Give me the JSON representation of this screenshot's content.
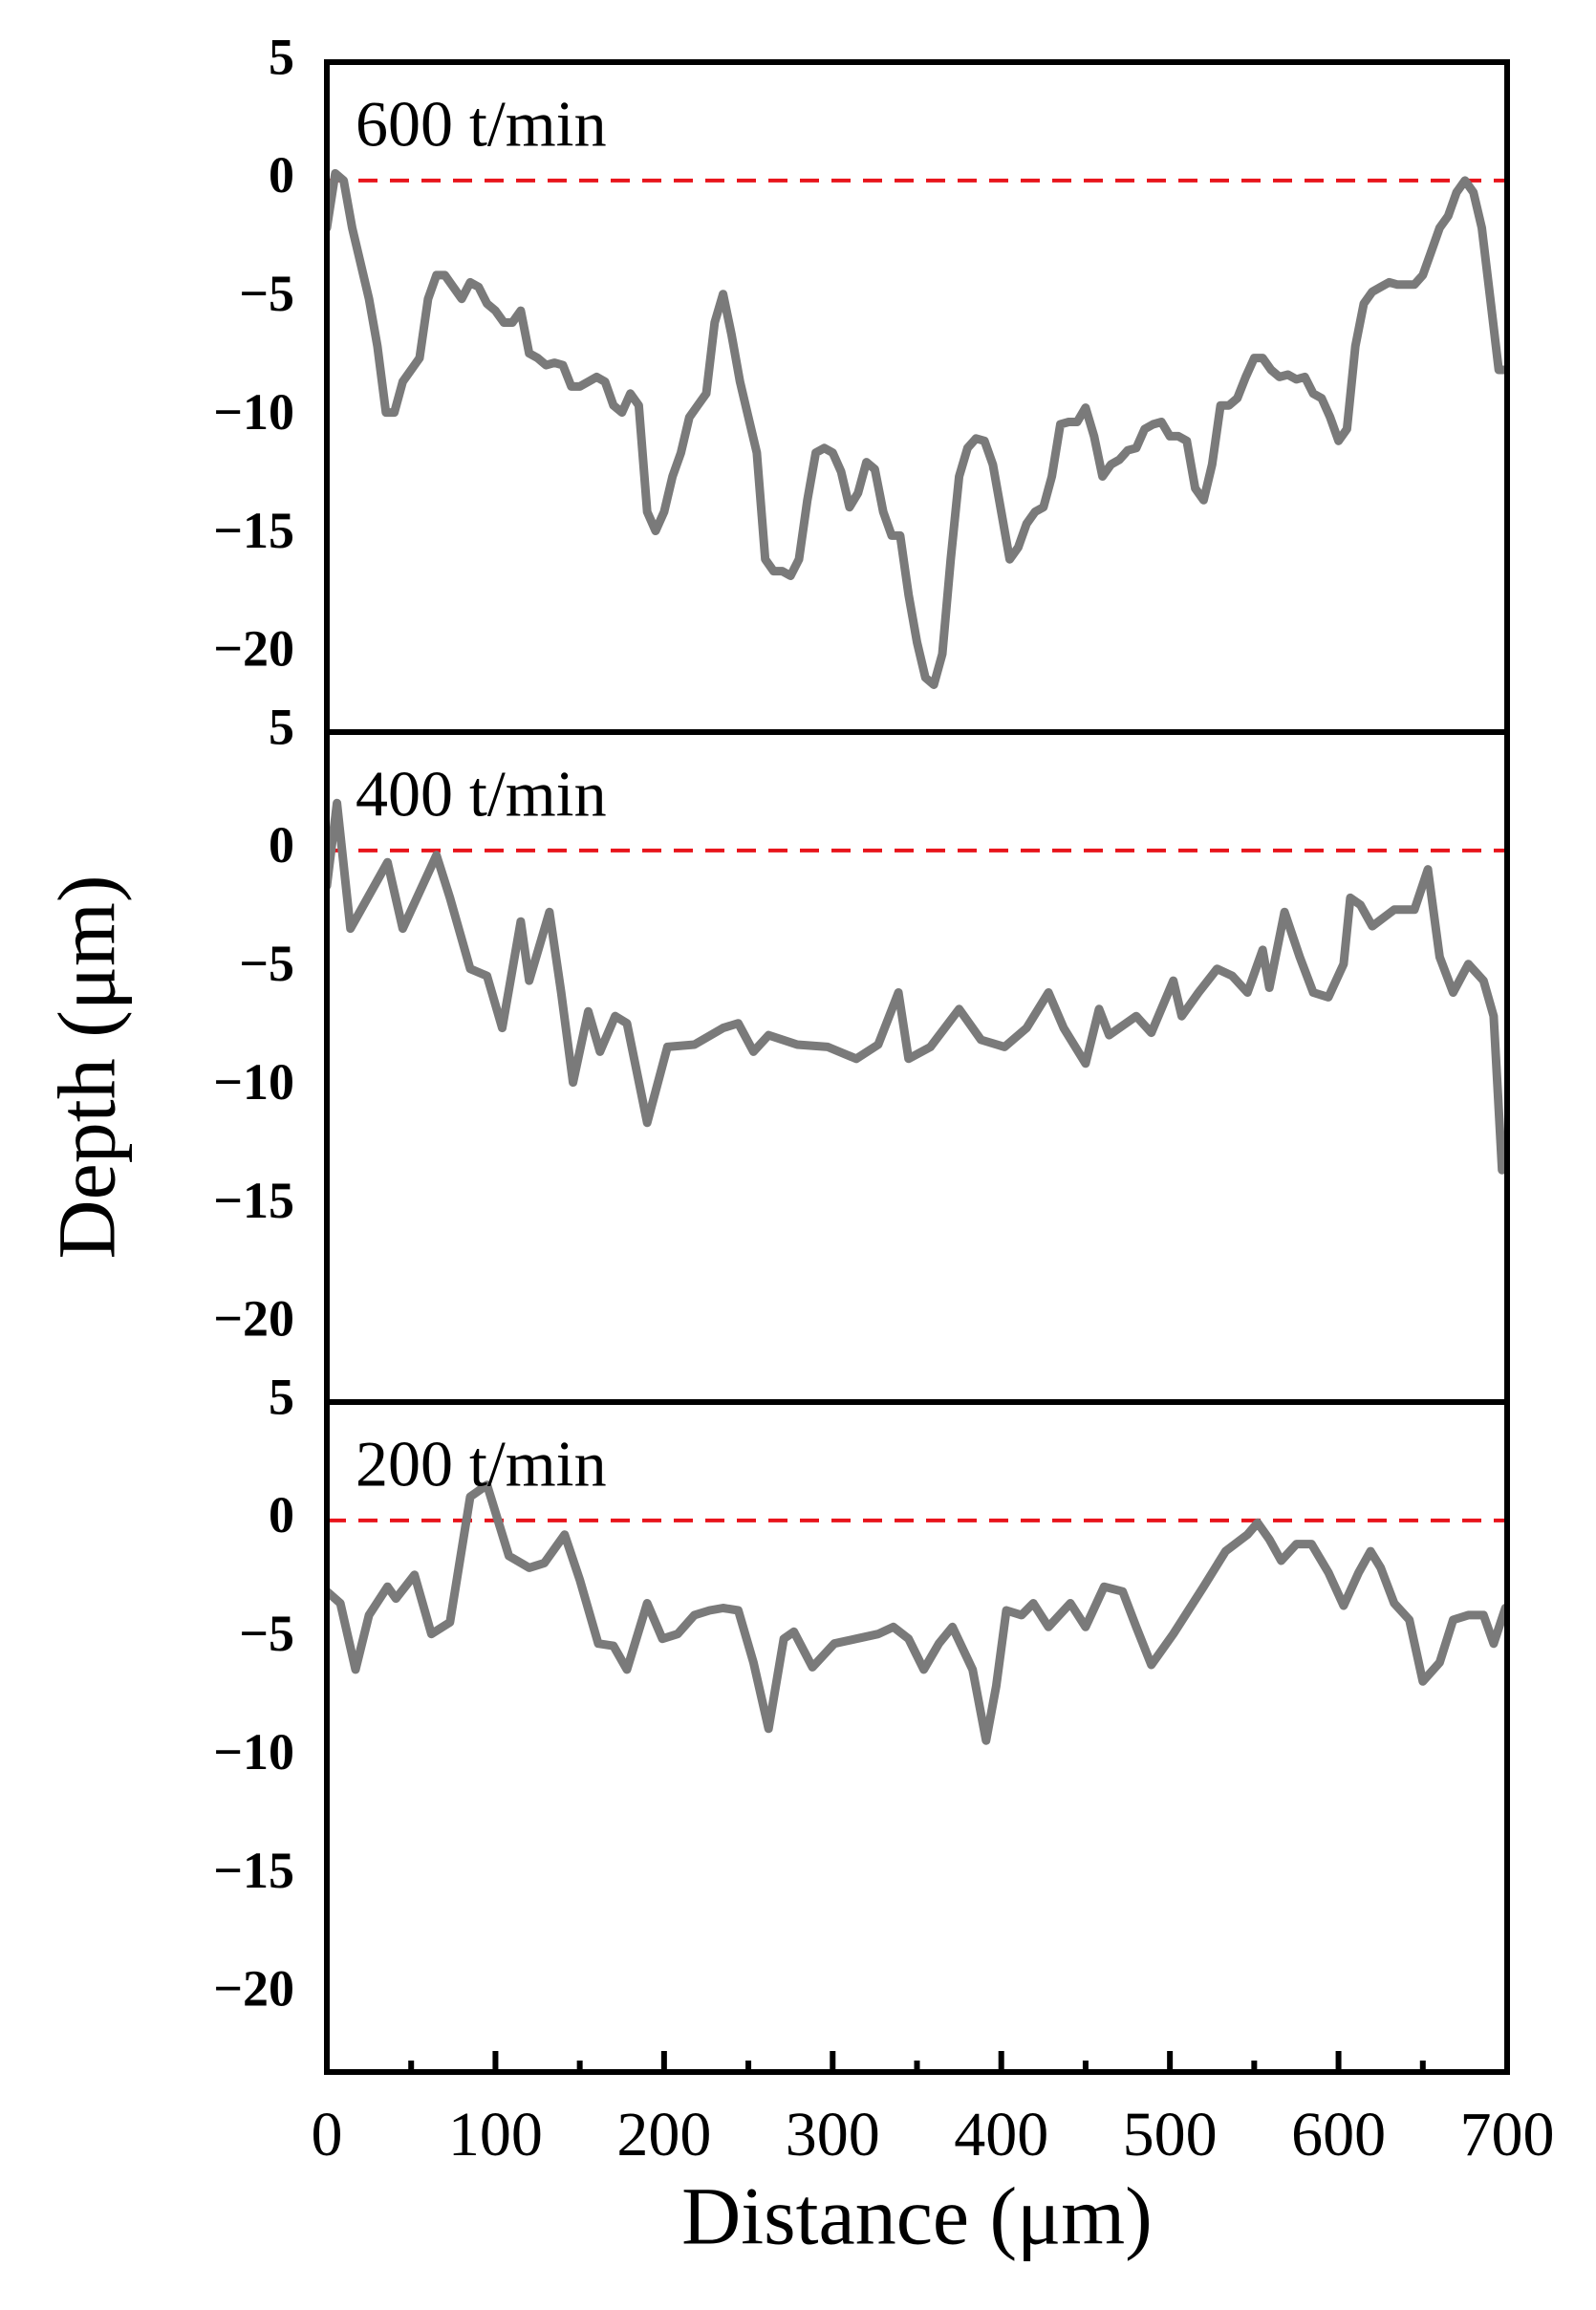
{
  "chart_data": [
    {
      "type": "line",
      "label": "600 t/min",
      "color": "#7a7a7a",
      "xlim": [
        0,
        700
      ],
      "ylim": [
        -23.3,
        5
      ],
      "yticks": [
        5,
        0,
        {
          "value": -5,
          "label": "−5"
        },
        {
          "value": -10,
          "label": "−10"
        },
        {
          "value": -15,
          "label": "−15"
        },
        {
          "value": -20,
          "label": "−20"
        }
      ],
      "reference_line": {
        "value": 0,
        "color": "#e8141b"
      },
      "x": [
        0,
        5,
        10,
        15,
        20,
        25,
        30,
        35,
        40,
        45,
        50,
        55,
        60,
        65,
        70,
        75,
        80,
        85,
        90,
        95,
        100,
        105,
        110,
        115,
        120,
        125,
        130,
        135,
        140,
        145,
        150,
        155,
        160,
        165,
        170,
        175,
        180,
        185,
        190,
        195,
        200,
        205,
        210,
        215,
        220,
        225,
        230,
        235,
        240,
        245,
        250,
        255,
        260,
        265,
        270,
        275,
        280,
        285,
        290,
        295,
        300,
        305,
        310,
        315,
        320,
        325,
        330,
        335,
        340,
        345,
        350,
        355,
        360,
        365,
        370,
        375,
        380,
        385,
        390,
        395,
        400,
        405,
        410,
        415,
        420,
        425,
        430,
        435,
        440,
        445,
        450,
        455,
        460,
        465,
        470,
        475,
        480,
        485,
        490,
        495,
        500,
        505,
        510,
        515,
        520,
        525,
        530,
        535,
        540,
        545,
        550,
        555,
        560,
        565,
        570,
        575,
        580,
        585,
        590,
        595,
        600,
        605,
        610,
        615,
        620,
        625,
        630,
        635,
        640,
        645,
        650,
        655,
        660,
        665,
        670,
        675,
        680,
        685,
        690,
        695,
        700
      ],
      "values": [
        -2,
        0.3,
        0,
        -2,
        -3.5,
        -5,
        -7,
        -9.8,
        -9.8,
        -8.5,
        -8,
        -7.5,
        -5,
        -4,
        -4,
        -4.5,
        -5,
        -4.3,
        -4.5,
        -5.2,
        -5.5,
        -6,
        -6,
        -5.5,
        -7.3,
        -7.5,
        -7.8,
        -7.7,
        -7.8,
        -8.7,
        -8.7,
        -8.5,
        -8.3,
        -8.5,
        -9.5,
        -9.8,
        -9,
        -9.5,
        -14,
        -14.8,
        -14,
        -12.5,
        -11.5,
        -10,
        -9.5,
        -9,
        -6,
        -4.8,
        -6.5,
        -8.5,
        -10,
        -11.5,
        -16,
        -16.5,
        -16.5,
        -16.7,
        -16,
        -13.5,
        -11.5,
        -11.3,
        -11.5,
        -12.3,
        -13.8,
        -13.2,
        -11.9,
        -12.2,
        -14,
        -15,
        -15,
        -17.5,
        -19.5,
        -21,
        -21.3,
        -20,
        -16,
        -12.5,
        -11.3,
        -10.9,
        -11,
        -12,
        -14,
        -16,
        -15.5,
        -14.5,
        -14,
        -13.8,
        -12.5,
        -10.3,
        -10.2,
        -10.2,
        -9.6,
        -10.8,
        -12.5,
        -12,
        -11.8,
        -11.4,
        -11.3,
        -10.5,
        -10.3,
        -10.2,
        -10.8,
        -10.8,
        -11,
        -13,
        -13.5,
        -12,
        -9.5,
        -9.5,
        -9.2,
        -8.3,
        -7.5,
        -7.5,
        -8,
        -8.3,
        -8.2,
        -8.4,
        -8.3,
        -9,
        -9.2,
        -10,
        -11,
        -10.5,
        -7,
        -5.2,
        -4.7,
        -4.5,
        -4.3,
        -4.4,
        -4.4,
        -4.4,
        -4,
        -3,
        -2,
        -1.5,
        -0.5,
        0,
        -0.5,
        -2,
        -5,
        -8,
        -8
      ]
    },
    {
      "type": "line",
      "label": "400 t/min",
      "ylabel": "Depth (μm)",
      "color": "#7a7a7a",
      "xlim": [
        0,
        700
      ],
      "ylim": [
        -23.3,
        5
      ],
      "yticks": [
        5,
        0,
        {
          "value": -5,
          "label": "−5"
        },
        {
          "value": -10,
          "label": "−10"
        },
        {
          "value": -15,
          "label": "−15"
        },
        {
          "value": -20,
          "label": "−20"
        }
      ],
      "reference_line": {
        "value": 0,
        "color": "#e8141b"
      },
      "x": [
        0,
        6,
        14,
        36,
        45,
        65,
        73,
        85,
        95,
        104,
        115,
        120,
        132,
        139,
        146,
        155,
        162,
        171,
        178,
        190,
        202,
        218,
        235,
        244,
        253,
        262,
        279,
        297,
        314,
        327,
        339,
        345,
        358,
        375,
        388,
        402,
        415,
        428,
        437,
        450,
        458,
        464,
        480,
        489,
        502,
        507,
        517,
        528,
        537,
        546,
        555,
        559,
        568,
        577,
        585,
        594,
        603,
        607,
        613,
        620,
        633,
        645,
        653,
        660,
        668,
        677,
        686,
        692,
        697
      ],
      "values": [
        -1.5,
        2,
        -3.3,
        -0.5,
        -3.3,
        -0.2,
        -2,
        -5,
        -5.3,
        -7.5,
        -3,
        -5.5,
        -2.6,
        -6,
        -9.8,
        -6.8,
        -8.5,
        -7,
        -7.3,
        -11.5,
        -8.3,
        -8.2,
        -7.5,
        -7.3,
        -8.5,
        -7.8,
        -8.2,
        -8.3,
        -8.8,
        -8.2,
        -6,
        -8.8,
        -8.3,
        -6.7,
        -8,
        -8.3,
        -7.5,
        -6,
        -7.5,
        -9,
        -6.7,
        -7.8,
        -7,
        -7.7,
        -5.5,
        -7,
        -6,
        -5,
        -5.3,
        -6,
        -4.2,
        -5.8,
        -2.6,
        -4.5,
        -6,
        -6.2,
        -4.8,
        -2,
        -2.3,
        -3.2,
        -2.5,
        -2.5,
        -0.8,
        -4.5,
        -6,
        -4.8,
        -5.5,
        -7,
        -13.5
      ]
    },
    {
      "type": "line",
      "label": "200 t/min",
      "xlabel": "Distance (μm)",
      "color": "#7a7a7a",
      "xlim": [
        0,
        700
      ],
      "ylim": [
        -23.3,
        5
      ],
      "yticks": [
        5,
        0,
        {
          "value": -5,
          "label": "−5"
        },
        {
          "value": -10,
          "label": "−10"
        },
        {
          "value": -15,
          "label": "−15"
        },
        {
          "value": -20,
          "label": "−20"
        }
      ],
      "xticks": [
        0,
        100,
        200,
        300,
        400,
        500,
        600,
        700
      ],
      "xminorticks": [
        50,
        150,
        250,
        350,
        450,
        550,
        650
      ],
      "reference_line": {
        "value": 0,
        "color": "#e8141b"
      },
      "x": [
        0,
        8,
        17,
        25,
        36,
        41,
        52,
        62,
        73,
        85,
        95,
        108,
        120,
        129,
        141,
        150,
        161,
        170,
        178,
        190,
        199,
        208,
        218,
        227,
        235,
        244,
        253,
        262,
        271,
        277,
        288,
        301,
        314,
        327,
        336,
        345,
        354,
        363,
        371,
        383,
        391,
        397,
        403,
        412,
        419,
        428,
        441,
        450,
        461,
        472,
        480,
        489,
        502,
        520,
        533,
        546,
        552,
        559,
        566,
        575,
        584,
        594,
        603,
        612,
        619,
        625,
        633,
        642,
        650,
        660,
        668,
        677,
        686,
        692,
        699
      ],
      "values": [
        -3,
        -3.5,
        -6.3,
        -4,
        -2.8,
        -3.3,
        -2.3,
        -4.8,
        -4.3,
        1,
        1.5,
        -1.5,
        -2,
        -1.8,
        -0.6,
        -2.5,
        -5.2,
        -5.3,
        -6.3,
        -3.5,
        -5,
        -4.8,
        -4,
        -3.8,
        -3.7,
        -3.8,
        -6,
        -8.8,
        -5,
        -4.7,
        -6.2,
        -5.2,
        -5,
        -4.8,
        -4.5,
        -5,
        -6.3,
        -5.2,
        -4.5,
        -6.3,
        -9.3,
        -7,
        -3.8,
        -4,
        -3.5,
        -4.5,
        -3.5,
        -4.5,
        -2.8,
        -3,
        -4.5,
        -6.1,
        -4.8,
        -2.8,
        -1.3,
        -0.6,
        -0.1,
        -0.8,
        -1.7,
        -1,
        -1,
        -2.2,
        -3.6,
        -2.2,
        -1.3,
        -2,
        -3.5,
        -4.2,
        -6.8,
        -6,
        -4.2,
        -4,
        -4,
        -5.2,
        -3.7
      ]
    }
  ]
}
